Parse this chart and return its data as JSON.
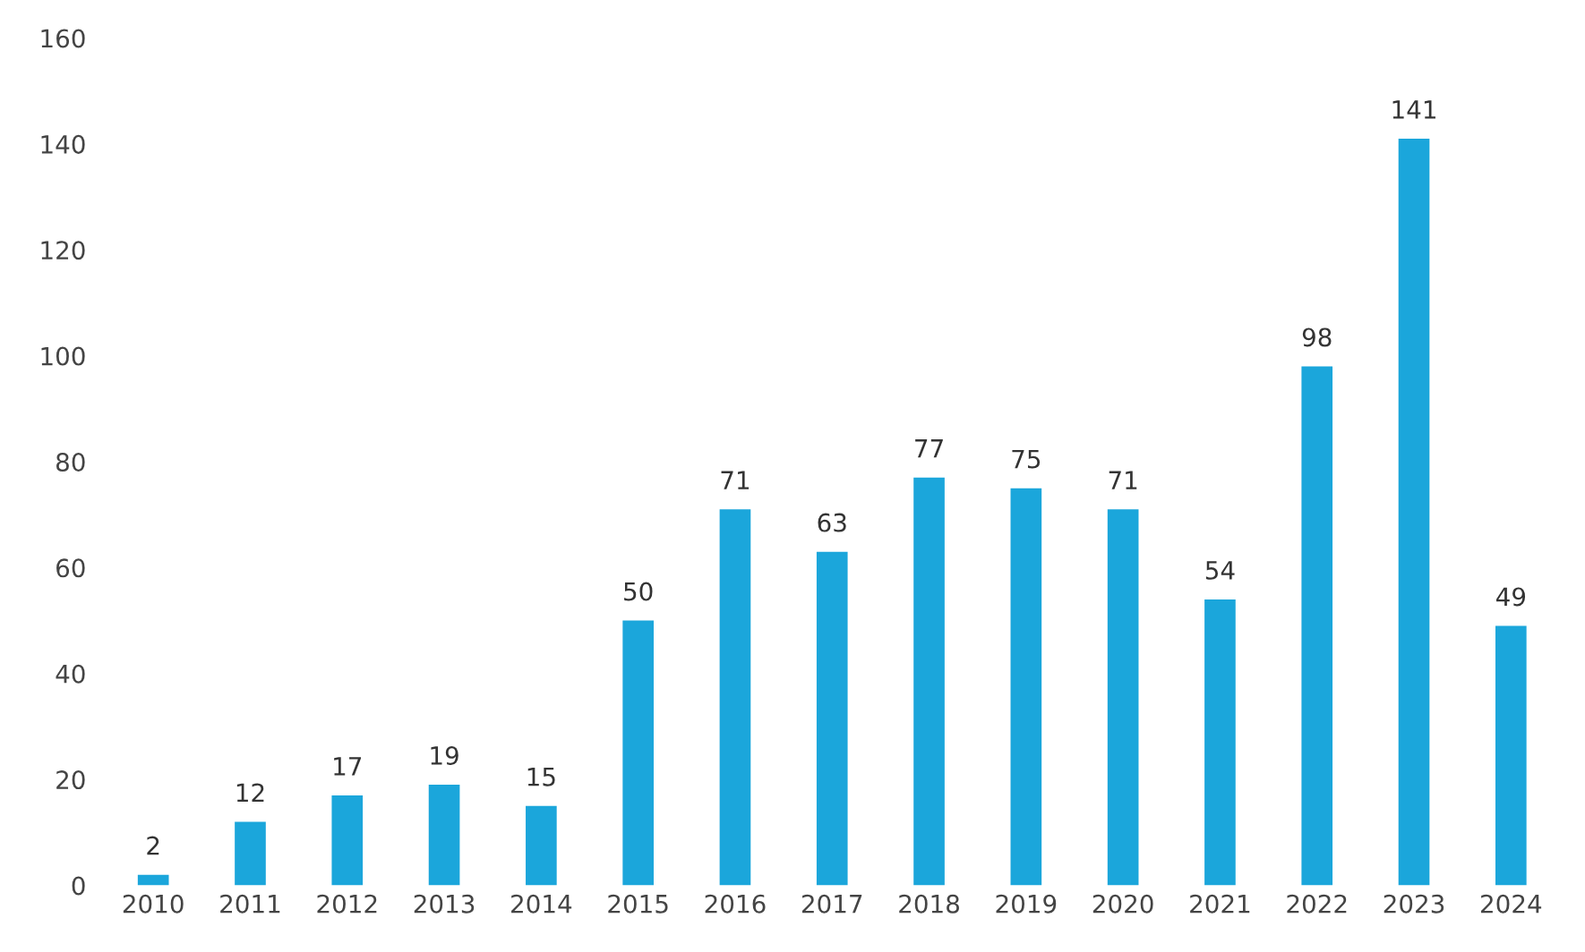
{
  "chart_data": {
    "type": "bar",
    "categories": [
      "2010",
      "2011",
      "2012",
      "2013",
      "2014",
      "2015",
      "2016",
      "2017",
      "2018",
      "2019",
      "2020",
      "2021",
      "2022",
      "2023",
      "2024"
    ],
    "values": [
      2,
      12,
      17,
      19,
      15,
      50,
      71,
      63,
      77,
      75,
      71,
      54,
      98,
      141,
      49
    ],
    "color": "#1ba6db",
    "ylim": [
      0,
      160
    ],
    "yticks": [
      0,
      20,
      40,
      60,
      80,
      100,
      120,
      140,
      160
    ],
    "data_labels": true,
    "grid": false
  }
}
